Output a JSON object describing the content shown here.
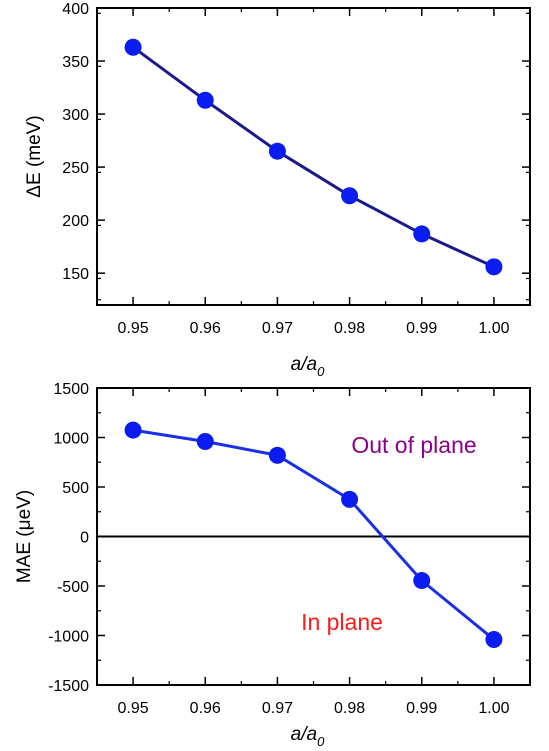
{
  "chart_data": [
    {
      "type": "line",
      "title": "",
      "xlabel_main": "a/a",
      "xlabel_sub": "0",
      "ylabel": "ΔE (meV)",
      "xlim": [
        0.945,
        1.005
      ],
      "ylim": [
        120,
        400
      ],
      "xticks": [
        "0.95",
        "0.96",
        "0.97",
        "0.98",
        "0.99",
        "1.00"
      ],
      "yticks": [
        "150",
        "200",
        "250",
        "300",
        "350",
        "400"
      ],
      "x": [
        0.95,
        0.96,
        0.97,
        0.98,
        0.99,
        1.0
      ],
      "series": [
        {
          "values": [
            363,
            313,
            265,
            223,
            187,
            156
          ],
          "color": "#1a1a8c",
          "marker_color": "#0a1cf0"
        }
      ],
      "annotations": []
    },
    {
      "type": "line",
      "title": "",
      "xlabel_main": "a/a",
      "xlabel_sub": "0",
      "ylabel": "MAE (μeV)",
      "xlim": [
        0.945,
        1.005
      ],
      "ylim": [
        -1500,
        1500
      ],
      "xticks": [
        "0.95",
        "0.96",
        "0.97",
        "0.98",
        "0.99",
        "1.00"
      ],
      "yticks": [
        "-1500",
        "-1000",
        "-500",
        "0",
        "500",
        "1000",
        "1500"
      ],
      "x": [
        0.95,
        0.96,
        0.97,
        0.98,
        0.99,
        1.0
      ],
      "series": [
        {
          "values": [
            1075,
            960,
            820,
            375,
            -445,
            -1040
          ],
          "color": "#1a2ee8",
          "marker_color": "#0a1cf0"
        }
      ],
      "zero_line": true,
      "annotations": [
        {
          "text": "Out of plane",
          "color": "#8b008b"
        },
        {
          "text": "In plane",
          "color": "#ff1a1a"
        }
      ]
    }
  ]
}
